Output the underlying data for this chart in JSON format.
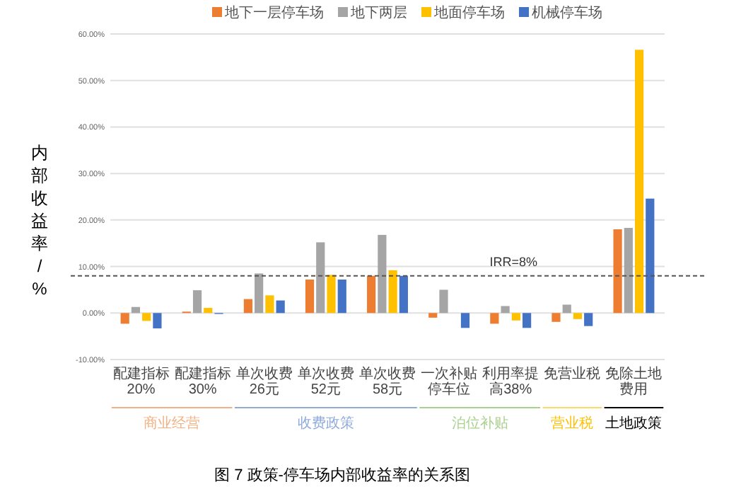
{
  "chart_data": {
    "type": "bar",
    "categories": [
      "配建指标20%",
      "配建指标30%",
      "单次收费26元",
      "单次收费52元",
      "单次收费58元",
      "一次补贴停车位",
      "利用率提高38%",
      "免营业税",
      "免除土地费用"
    ],
    "series": [
      {
        "name": "地下一层停车场",
        "color": "#ed7d31",
        "values": [
          -2.3,
          0.3,
          3.0,
          7.2,
          8.0,
          -1.0,
          -2.3,
          -1.9,
          18.0
        ]
      },
      {
        "name": "地下两层",
        "color": "#a5a5a5",
        "values": [
          1.3,
          4.9,
          8.5,
          15.2,
          16.8,
          5.0,
          1.5,
          1.8,
          18.3
        ]
      },
      {
        "name": "地面停车场",
        "color": "#ffc000",
        "values": [
          -1.7,
          1.1,
          3.8,
          8.2,
          9.2,
          null,
          -1.6,
          -1.3,
          56.6
        ]
      },
      {
        "name": "机械停车场",
        "color": "#4472c4",
        "values": [
          -3.3,
          -0.2,
          2.7,
          7.2,
          8.0,
          -3.2,
          -3.2,
          -2.8,
          24.6
        ]
      }
    ],
    "ylabel": "内部收益率/%",
    "ylim": [
      -10,
      60
    ],
    "yticks": [
      {
        "value": -10,
        "label": "-10.00%"
      },
      {
        "value": 0,
        "label": "0.00%"
      },
      {
        "value": 10,
        "label": "10.00%"
      },
      {
        "value": 20,
        "label": "20.00%"
      },
      {
        "value": 30,
        "label": "30.00%"
      },
      {
        "value": 40,
        "label": "40.00%"
      },
      {
        "value": 50,
        "label": "50.00%"
      },
      {
        "value": 60,
        "label": "60.00%"
      }
    ],
    "grid": "y",
    "legend": "top",
    "ref_lines": [
      {
        "axis": "y",
        "value": 8,
        "label": "IRR=8%",
        "line_style": "dashed",
        "color": "#555555"
      }
    ],
    "annotations": [
      "商业经营",
      "收费政策",
      "泊位补贴",
      "营业税",
      "土地政策",
      "图 7 政策-停车场内部收益率的关系图"
    ]
  }
}
